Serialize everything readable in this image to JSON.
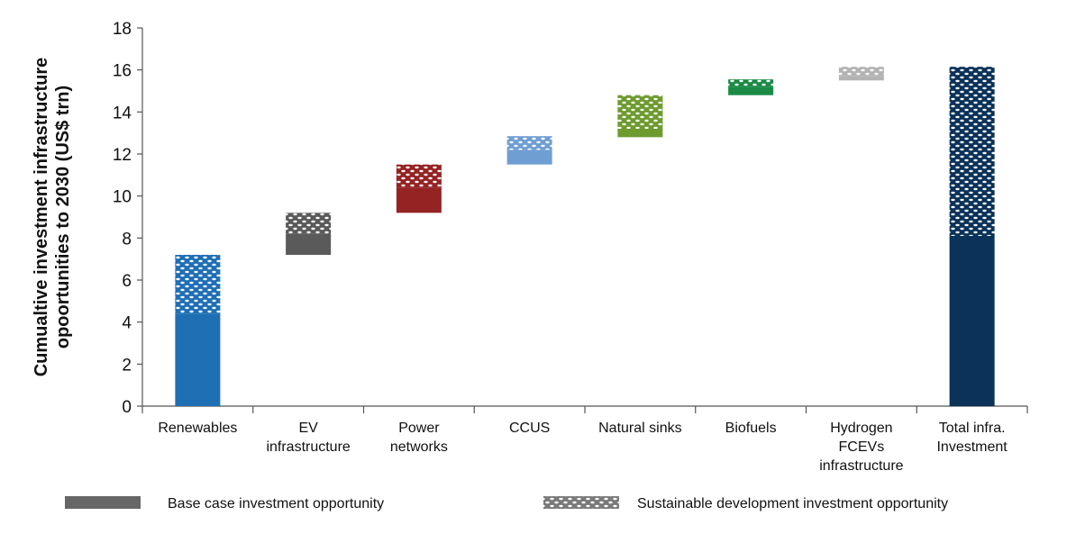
{
  "chart_data": {
    "type": "bar",
    "subtype": "waterfall-stacked",
    "ylabel_lines": [
      "Cumualtive investment infrastructure",
      "opoortunities to 2030 (US$ trn)"
    ],
    "ylim": [
      0,
      18
    ],
    "yticks": [
      0,
      2,
      4,
      6,
      8,
      10,
      12,
      14,
      16,
      18
    ],
    "grid": false,
    "legend_position": "bottom",
    "categories": [
      {
        "lines": [
          "Renewables"
        ]
      },
      {
        "lines": [
          "EV",
          "infrastructure"
        ]
      },
      {
        "lines": [
          "Power",
          "networks"
        ]
      },
      {
        "lines": [
          "CCUS"
        ]
      },
      {
        "lines": [
          "Natural sinks"
        ]
      },
      {
        "lines": [
          "Biofuels"
        ]
      },
      {
        "lines": [
          "Hydrogen",
          "FCEVs",
          "infrastructure"
        ]
      },
      {
        "lines": [
          "Total infra.",
          "Investment"
        ]
      }
    ],
    "series": [
      {
        "name": "Base case investment opportunity",
        "legend_color": "#666666",
        "bars": [
          {
            "start": 0,
            "value": 4.4,
            "color": "#1f6fb5"
          },
          {
            "start": 7.2,
            "value": 1.0,
            "color": "#5a5a5a"
          },
          {
            "start": 9.2,
            "value": 1.2,
            "color": "#952324"
          },
          {
            "start": 11.5,
            "value": 0.7,
            "color": "#6f9ed2"
          },
          {
            "start": 12.8,
            "value": 0.4,
            "color": "#6d9b2e"
          },
          {
            "start": 14.8,
            "value": 0.4,
            "color": "#1a8a45"
          },
          {
            "start": 15.5,
            "value": 0.2,
            "color": "#b3b3b3"
          },
          {
            "start": 0,
            "value": 8.1,
            "color": "#0b3259"
          }
        ]
      },
      {
        "name": "Sustainable development investment opportunity",
        "legend_color": "#7a7a7a",
        "bars": [
          {
            "start": 4.4,
            "value": 2.8,
            "color": "#1f6fb5"
          },
          {
            "start": 8.2,
            "value": 1.0,
            "color": "#5a5a5a"
          },
          {
            "start": 10.4,
            "value": 1.1,
            "color": "#952324"
          },
          {
            "start": 12.2,
            "value": 0.65,
            "color": "#6f9ed2"
          },
          {
            "start": 13.2,
            "value": 1.6,
            "color": "#6d9b2e"
          },
          {
            "start": 15.2,
            "value": 0.35,
            "color": "#1a8a45"
          },
          {
            "start": 15.7,
            "value": 0.45,
            "color": "#b3b3b3"
          },
          {
            "start": 8.1,
            "value": 8.05,
            "color": "#0b3259"
          }
        ]
      }
    ]
  }
}
